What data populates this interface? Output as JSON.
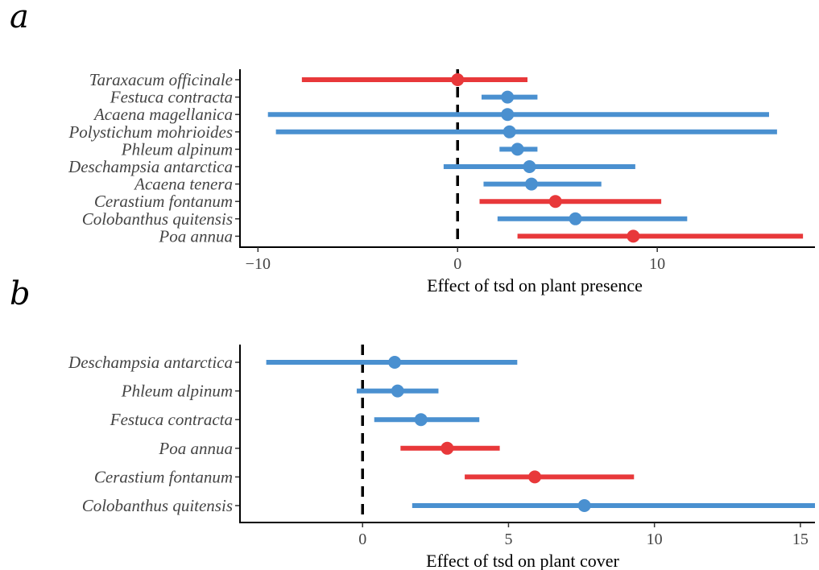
{
  "colors": {
    "blue": "#4a90d0",
    "red": "#e8383a"
  },
  "chart_data": [
    {
      "type": "scatter",
      "panel_label": "a",
      "xlabel": "Effect of tsd on plant presence",
      "xlim": [
        -10.9,
        17.9
      ],
      "xticks": [
        -10,
        0,
        10
      ],
      "tick_labels": [
        "−10",
        "0",
        "10"
      ],
      "grid": false,
      "reference_line_x": 0,
      "categories": [
        "Taraxacum officinale",
        "Festuca contracta",
        "Acaena magellanica",
        "Polystichum mohrioides",
        "Phleum alpinum",
        "Deschampsia antarctica",
        "Acaena tenera",
        "Cerastium fontanum",
        "Colobanthus quitensis",
        "Poa annua"
      ],
      "estimate": [
        0.0,
        2.5,
        2.5,
        2.6,
        3.0,
        3.6,
        3.7,
        4.9,
        5.9,
        8.8
      ],
      "lower": [
        -7.8,
        1.2,
        -9.5,
        -9.1,
        2.1,
        -0.7,
        1.3,
        1.1,
        2.0,
        3.0
      ],
      "upper": [
        3.5,
        4.0,
        15.6,
        16.0,
        4.0,
        8.9,
        7.2,
        10.2,
        11.5,
        17.3
      ],
      "color_group": [
        "red",
        "blue",
        "blue",
        "blue",
        "blue",
        "blue",
        "blue",
        "red",
        "blue",
        "red"
      ]
    },
    {
      "type": "scatter",
      "panel_label": "b",
      "xlabel": "Effect of tsd on plant cover",
      "xlim": [
        -4.2,
        15.5
      ],
      "xticks": [
        0,
        5,
        10,
        15
      ],
      "tick_labels": [
        "0",
        "5",
        "10",
        "15"
      ],
      "grid": false,
      "reference_line_x": 0,
      "categories": [
        "Deschampsia antarctica",
        "Phleum alpinum",
        "Festuca contracta",
        "Poa annua",
        "Cerastium fontanum",
        "Colobanthus quitensis"
      ],
      "estimate": [
        1.1,
        1.2,
        2.0,
        2.9,
        5.9,
        7.6
      ],
      "lower": [
        -3.3,
        -0.2,
        0.4,
        1.3,
        3.5,
        1.7
      ],
      "upper": [
        5.3,
        2.6,
        4.0,
        4.7,
        9.3,
        15.5
      ],
      "color_group": [
        "blue",
        "blue",
        "blue",
        "red",
        "red",
        "blue"
      ]
    }
  ]
}
